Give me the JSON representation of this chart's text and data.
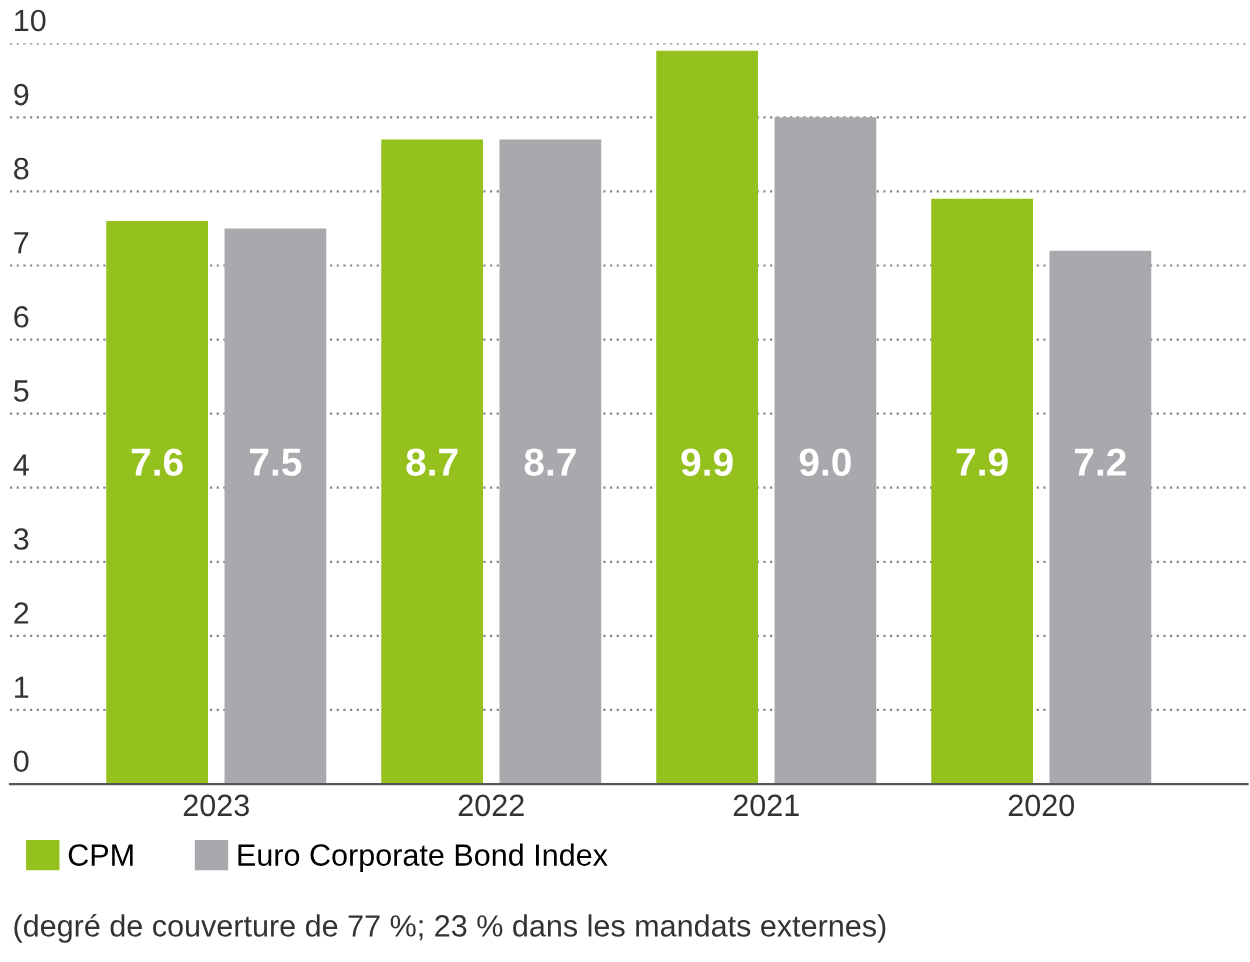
{
  "chart_data": {
    "type": "bar",
    "categories": [
      "2023",
      "2022",
      "2021",
      "2020"
    ],
    "series": [
      {
        "name": "CPM",
        "color": "#95c11f",
        "values": [
          7.6,
          8.7,
          9.9,
          7.9
        ],
        "value_labels": [
          "7.6",
          "8.7",
          "9.9",
          "7.9"
        ]
      },
      {
        "name": "Euro Corporate Bond Index",
        "color": "#a8a9ad",
        "values": [
          7.5,
          8.7,
          9.0,
          7.2
        ],
        "value_labels": [
          "7.5",
          "8.7",
          "9.0",
          "7.2"
        ]
      }
    ],
    "ylim": [
      0,
      10
    ],
    "yticks": [
      0,
      1,
      2,
      3,
      4,
      5,
      6,
      7,
      8,
      9,
      10
    ],
    "grid": "y",
    "legend": "bottom left",
    "annotations": [
      "(degré de couverture de 77 %; 23 % dans les mandats externes)"
    ]
  }
}
